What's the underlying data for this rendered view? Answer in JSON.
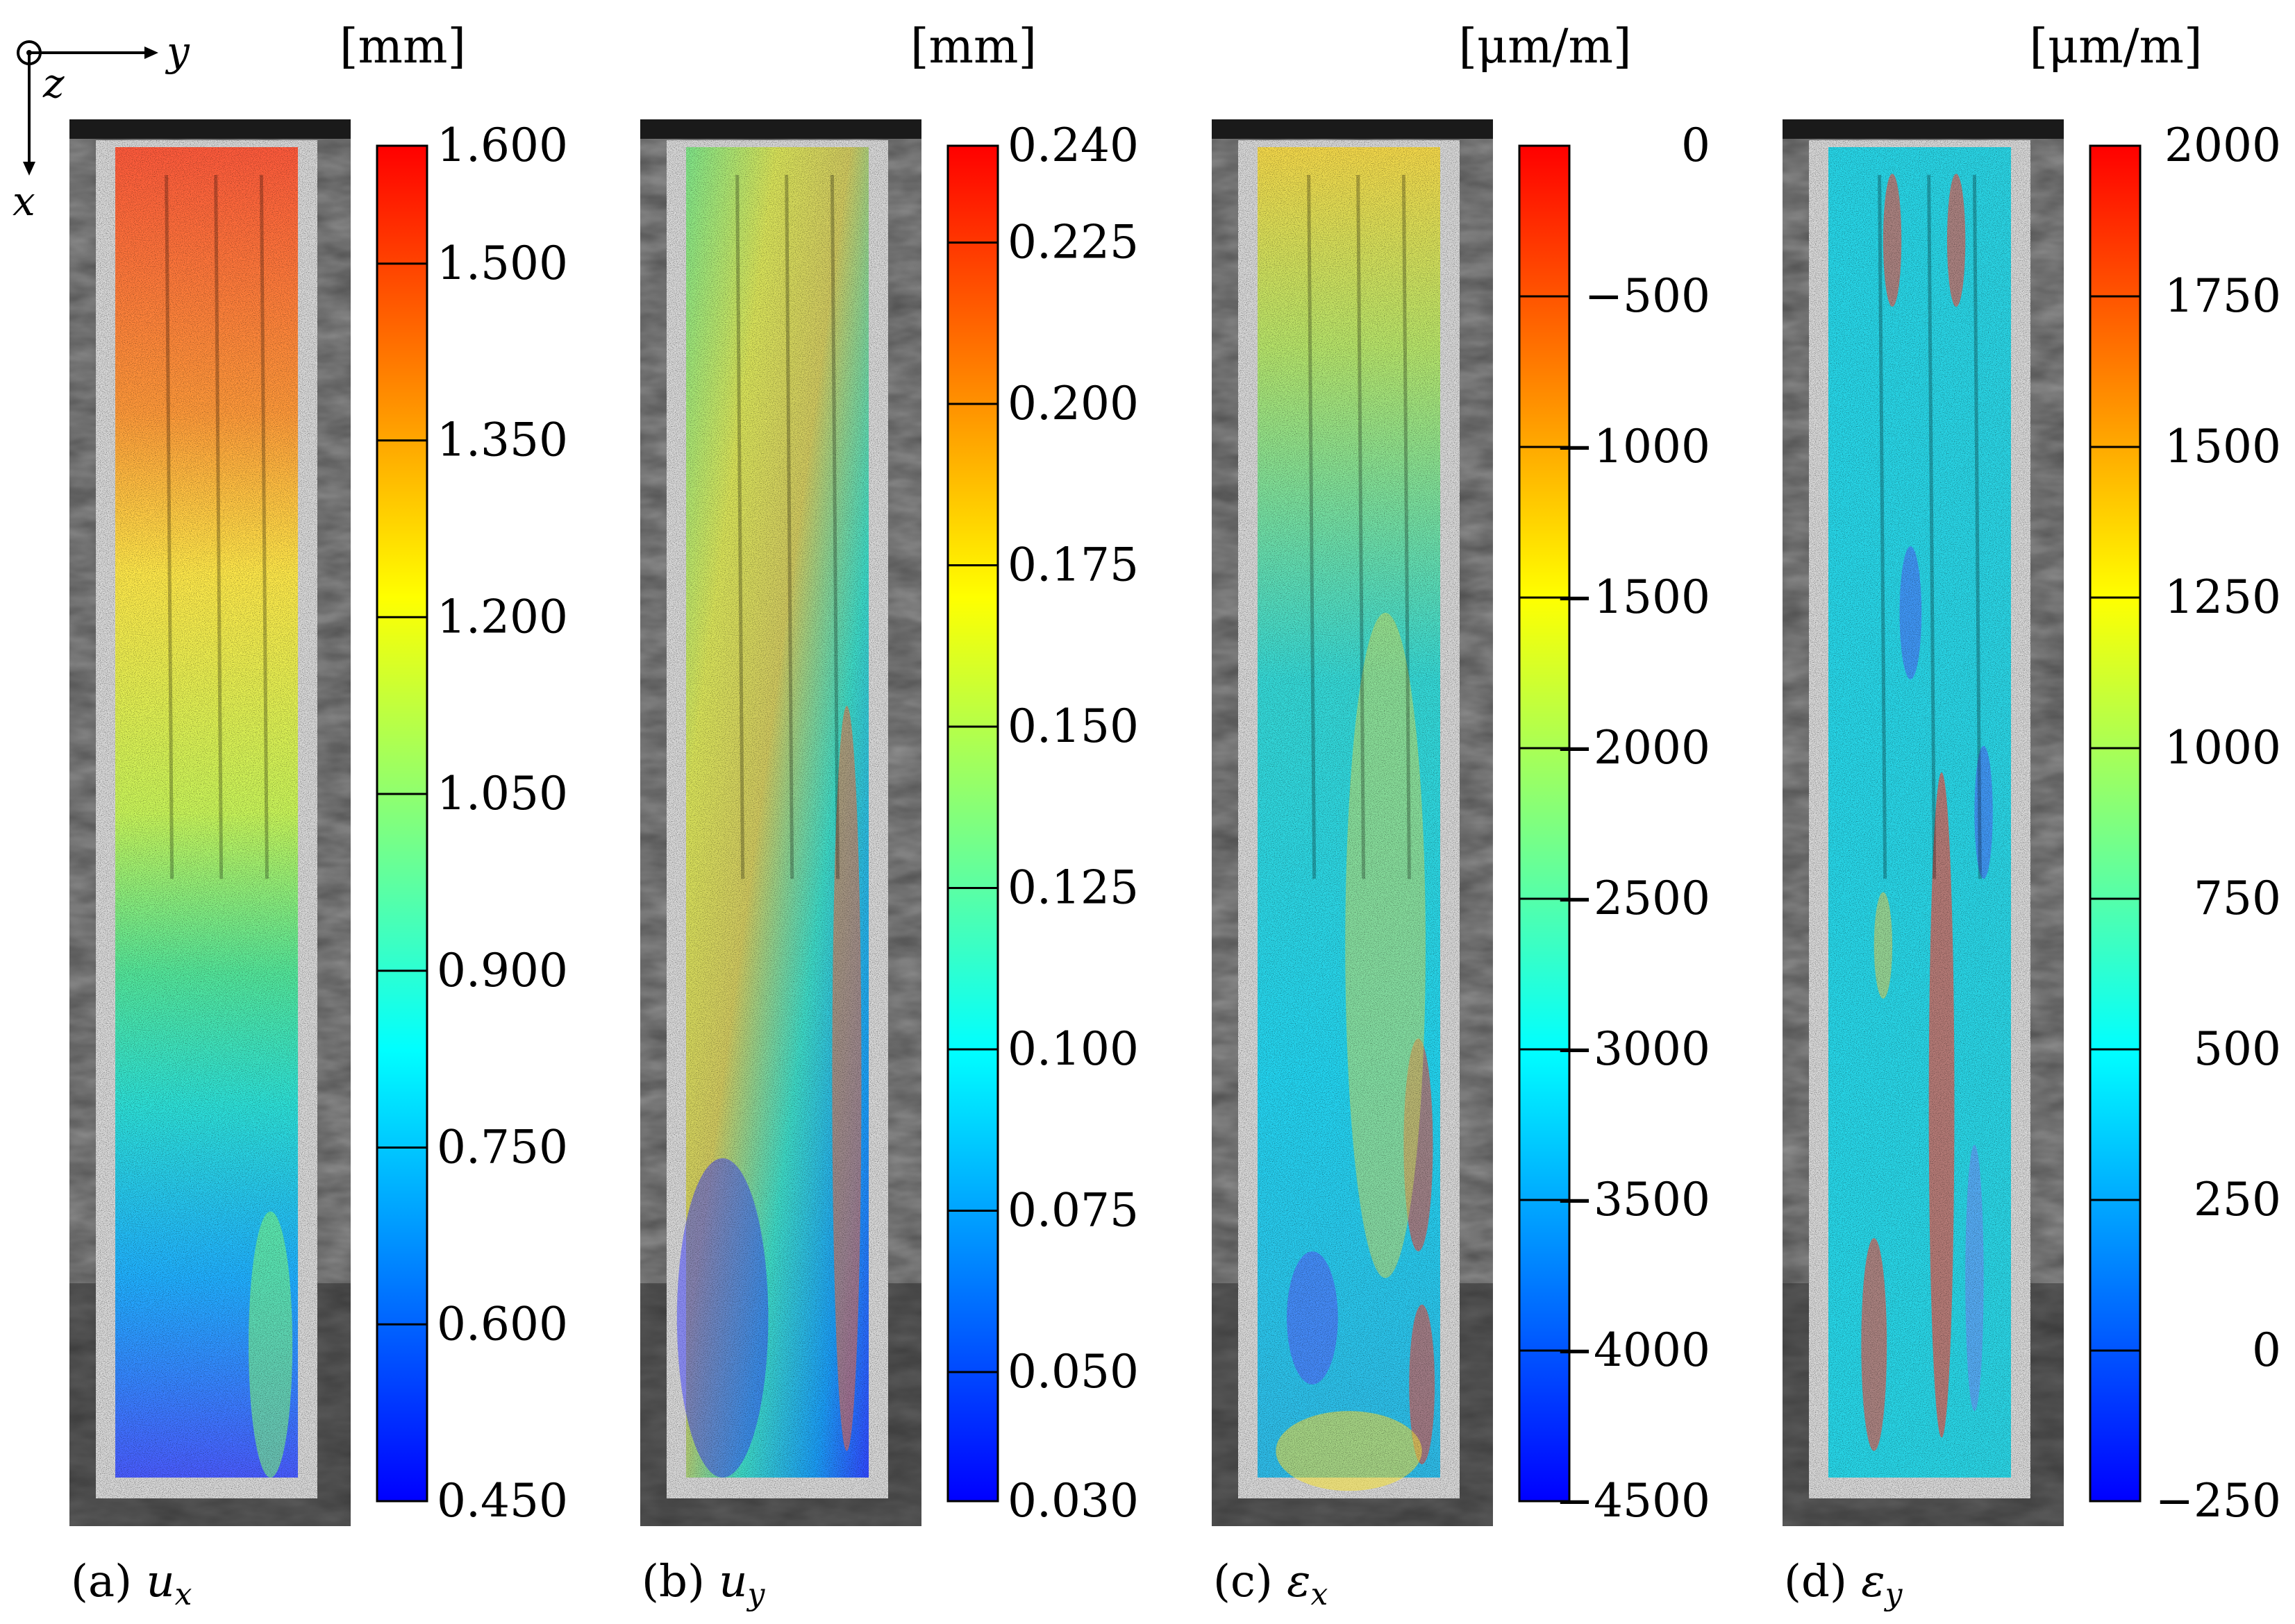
{
  "axes": {
    "y_label": "y",
    "z_label": "z",
    "x_label": "x"
  },
  "panels": [
    {
      "id": "a",
      "caption_prefix": "(a)",
      "caption_symbol": "u",
      "caption_sub": "x",
      "unit": "[mm]",
      "ticks": [
        "1.600",
        "1.500",
        "1.350",
        "1.200",
        "1.050",
        "0.900",
        "0.750",
        "0.600",
        "0.450"
      ],
      "tick_values": [
        1.6,
        1.5,
        1.35,
        1.2,
        1.05,
        0.9,
        0.75,
        0.6,
        0.45
      ],
      "range": [
        0.45,
        1.6
      ],
      "field": "ux"
    },
    {
      "id": "b",
      "caption_prefix": "(b)",
      "caption_symbol": "u",
      "caption_sub": "y",
      "unit": "[mm]",
      "ticks": [
        "0.240",
        "0.225",
        "0.200",
        "0.175",
        "0.150",
        "0.125",
        "0.100",
        "0.075",
        "0.050",
        "0.030"
      ],
      "tick_values": [
        0.24,
        0.225,
        0.2,
        0.175,
        0.15,
        0.125,
        0.1,
        0.075,
        0.05,
        0.03
      ],
      "range": [
        0.03,
        0.24
      ],
      "field": "uy"
    },
    {
      "id": "c",
      "caption_prefix": "(c)",
      "caption_symbol": "ε",
      "caption_sub": "x",
      "unit": "[μm/m]",
      "ticks": [
        "0",
        "−500",
        "−1000",
        "−1500",
        "−2000",
        "−2500",
        "−3000",
        "−3500",
        "−4000",
        "−4500"
      ],
      "tick_values": [
        0,
        -500,
        -1000,
        -1500,
        -2000,
        -2500,
        -3000,
        -3500,
        -4000,
        -4500
      ],
      "range": [
        -4500,
        0
      ],
      "field": "ex"
    },
    {
      "id": "d",
      "caption_prefix": "(d)",
      "caption_symbol": "ε",
      "caption_sub": "y",
      "unit": "[μm/m]",
      "ticks": [
        "2000",
        "1750",
        "1500",
        "1250",
        "1000",
        "750",
        "500",
        "250",
        "0",
        "−250"
      ],
      "tick_values": [
        2000,
        1750,
        1500,
        1250,
        1000,
        750,
        500,
        250,
        0,
        -250
      ],
      "range": [
        -250,
        2000
      ],
      "field": "ey"
    }
  ],
  "colors": {
    "jet": [
      "#00007f",
      "#0000ff",
      "#007fff",
      "#00ffff",
      "#7fff7f",
      "#ffff00",
      "#ff7f00",
      "#ff0000",
      "#7f0000"
    ]
  }
}
